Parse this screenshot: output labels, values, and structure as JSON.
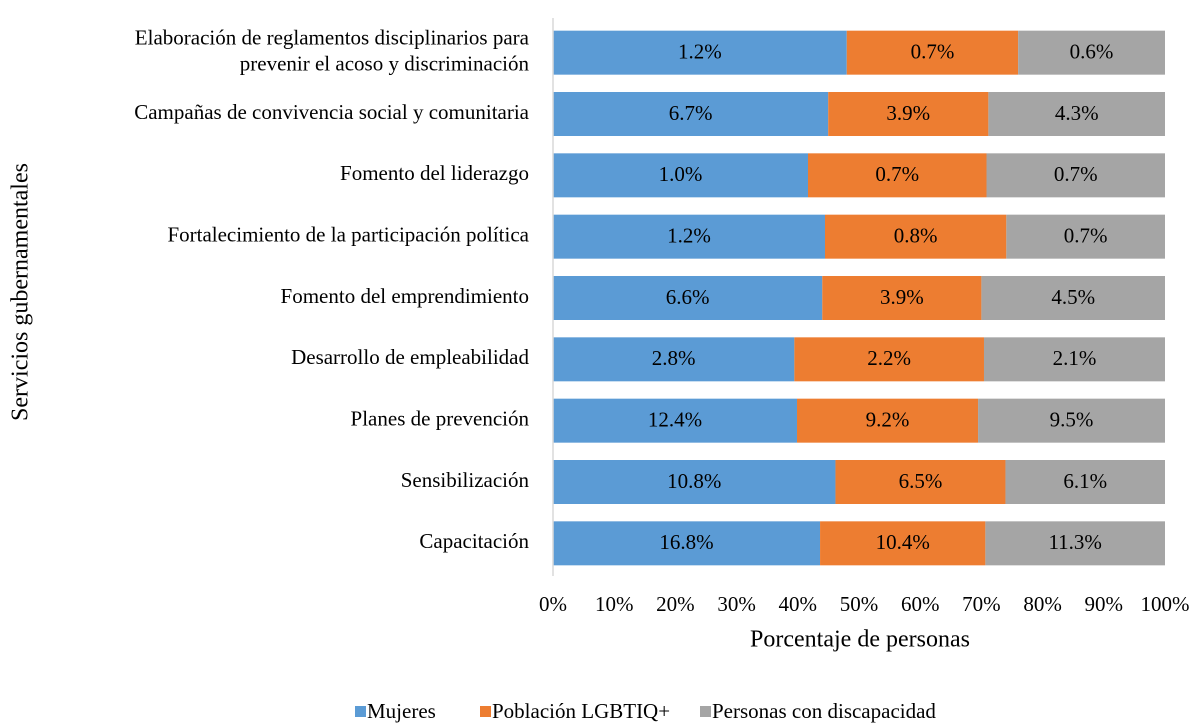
{
  "chart_data": {
    "type": "bar",
    "orientation": "horizontal",
    "stacking": "percent",
    "x_label": "Porcentaje de personas",
    "y_label": "Servicios gubernamentales",
    "categories": [
      [
        "Elaboración de reglamentos disciplinarios para",
        "prevenir el acoso y discriminación"
      ],
      "Campañas de convivencia social y comunitaria",
      "Fomento del liderazgo",
      "Fortalecimiento de la participación política",
      "Fomento del emprendimiento",
      "Desarrollo de empleabilidad",
      "Planes de prevención",
      "Sensibilización",
      "Capacitación"
    ],
    "series": [
      {
        "name": "Mujeres",
        "color": "#5b9bd5",
        "values": [
          1.2,
          6.7,
          1.0,
          1.2,
          6.6,
          2.8,
          12.4,
          10.8,
          16.8
        ],
        "value_labels": [
          "1.2%",
          "6.7%",
          "1.0%",
          "1.2%",
          "6.6%",
          "2.8%",
          "12.4%",
          "10.8%",
          "16.8%"
        ]
      },
      {
        "name": "Población LGBTIQ+",
        "color": "#ed7d31",
        "values": [
          0.7,
          3.9,
          0.7,
          0.8,
          3.9,
          2.2,
          9.2,
          6.5,
          10.4
        ],
        "value_labels": [
          "0.7%",
          "3.9%",
          "0.7%",
          "0.8%",
          "3.9%",
          "2.2%",
          "9.2%",
          "6.5%",
          "10.4%"
        ]
      },
      {
        "name": "Personas con discapacidad",
        "color": "#a5a5a5",
        "values": [
          0.6,
          4.3,
          0.7,
          0.7,
          4.5,
          2.1,
          9.5,
          6.1,
          11.3
        ],
        "value_labels": [
          "0.6%",
          "4.3%",
          "0.7%",
          "0.7%",
          "4.5%",
          "2.1%",
          "9.5%",
          "6.1%",
          "11.3%"
        ]
      }
    ],
    "xlim": [
      0,
      100
    ],
    "xticks": [
      {
        "value": 0,
        "label": "0%"
      },
      {
        "value": 10,
        "label": "10%"
      },
      {
        "value": 20,
        "label": "20%"
      },
      {
        "value": 30,
        "label": "30%"
      },
      {
        "value": 40,
        "label": "40%"
      },
      {
        "value": 50,
        "label": "50%"
      },
      {
        "value": 60,
        "label": "60%"
      },
      {
        "value": 70,
        "label": "70%"
      },
      {
        "value": 80,
        "label": "80%"
      },
      {
        "value": 90,
        "label": "90%"
      },
      {
        "value": 100,
        "label": "100%"
      }
    ],
    "grid": false,
    "legend": "bottom"
  }
}
